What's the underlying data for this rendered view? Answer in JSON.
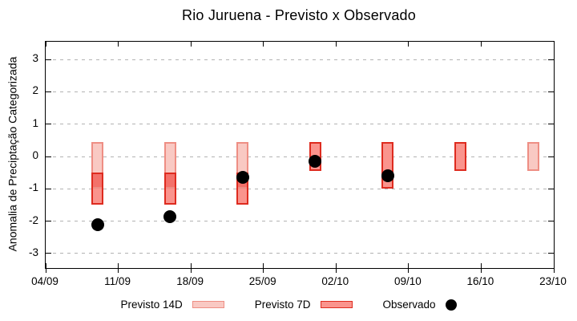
{
  "colors": {
    "background": "#ffffff",
    "axis": "#000000",
    "grid": "#b3b3b3",
    "previsto_14d_fill": "#f9c9c3",
    "previsto_14d_border": "#ee8e84",
    "previsto_7d_fill": "#fa948d",
    "previsto_7d_border": "#de2b1f",
    "overlap_fill": "#f3716a",
    "observado": "#000000"
  },
  "chart_data": {
    "type": "bar",
    "subtype": "forecast-range-boxes-with-observed-scatter",
    "title": "Rio Juruena - Previsto x Observado",
    "xlabel": "",
    "ylabel": "Anomalia de Preciptação Categorizada",
    "ylim": [
      -3.45,
      3.55
    ],
    "yticks": [
      3,
      2,
      1,
      0,
      -1,
      -2,
      -3
    ],
    "grid": "horizontal-dashed",
    "legend_position": "bottom",
    "x_axis": {
      "tick_labels": [
        "04/09",
        "11/09",
        "18/09",
        "25/09",
        "02/10",
        "09/10",
        "16/10",
        "23/10"
      ],
      "tick_interval_days": 7,
      "span_days": 49
    },
    "series": [
      {
        "name": "Previsto 14D",
        "marker": "light-pink-box"
      },
      {
        "name": "Previsto 7D",
        "marker": "red-box"
      },
      {
        "name": "Observado",
        "marker": "black-dot"
      }
    ],
    "groups": [
      {
        "date": "09/09",
        "day_offset": 5,
        "previsto_14d": [
          -1.0,
          0.45
        ],
        "previsto_7d": [
          -1.5,
          -0.5
        ],
        "observado": -2.1
      },
      {
        "date": "16/09",
        "day_offset": 12,
        "previsto_14d": [
          -1.0,
          0.45
        ],
        "previsto_7d": [
          -1.5,
          -0.5
        ],
        "observado": -1.85
      },
      {
        "date": "23/09",
        "day_offset": 19,
        "previsto_14d": [
          -1.0,
          0.45
        ],
        "previsto_7d": [
          -1.5,
          -0.5
        ],
        "observado": -0.65
      },
      {
        "date": "30/09",
        "day_offset": 26,
        "previsto_14d": null,
        "previsto_7d": [
          -0.45,
          0.45
        ],
        "observado": -0.15
      },
      {
        "date": "07/10",
        "day_offset": 33,
        "previsto_14d": null,
        "previsto_7d": [
          -1.0,
          0.45
        ],
        "observado": -0.6
      },
      {
        "date": "14/10",
        "day_offset": 40,
        "previsto_14d": null,
        "previsto_7d": [
          -0.45,
          0.45
        ],
        "observado": null
      },
      {
        "date": "21/10",
        "day_offset": 47,
        "previsto_14d": [
          -0.45,
          0.45
        ],
        "previsto_7d": null,
        "observado": null
      }
    ]
  }
}
